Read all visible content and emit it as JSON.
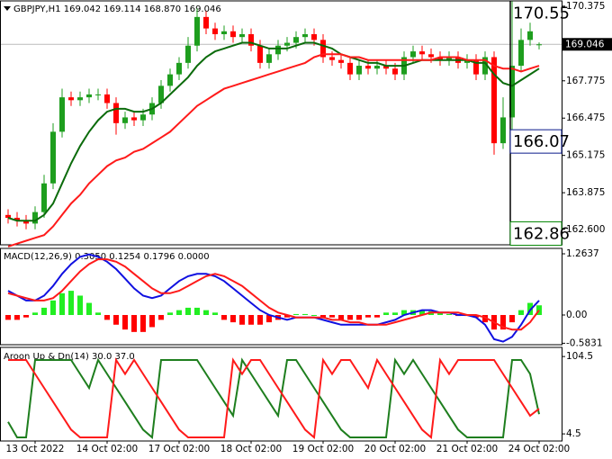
{
  "chart_data": [
    {
      "type": "candlestick",
      "title": "GBPJPY,H1  169.042 169.114 168.870 169.046",
      "open": [
        163.1,
        163.0,
        162.9,
        162.8,
        163.2,
        164.2,
        166.0,
        167.2,
        167.1,
        167.2,
        167.3,
        167.3,
        167.0,
        166.3,
        166.5,
        166.4,
        166.6,
        167.0,
        167.6,
        168.0,
        168.4,
        169.0,
        170.0,
        169.6,
        169.4,
        169.5,
        169.3,
        169.4,
        169.0,
        168.4,
        168.7,
        169.0,
        169.1,
        169.3,
        169.4,
        169.2,
        168.6,
        168.5,
        168.4,
        168.0,
        168.3,
        168.2,
        168.3,
        168.2,
        168.0,
        168.6,
        168.8,
        168.7,
        168.6,
        168.5,
        168.6,
        168.4,
        168.5,
        168.0,
        168.6,
        165.6,
        166.5,
        168.3,
        169.2,
        169.042
      ],
      "high": [
        163.3,
        163.2,
        163.1,
        163.4,
        164.5,
        166.3,
        167.5,
        167.4,
        167.4,
        167.5,
        167.5,
        167.5,
        167.2,
        166.7,
        166.7,
        166.8,
        167.2,
        167.8,
        168.2,
        168.6,
        169.3,
        170.3,
        170.2,
        169.8,
        169.7,
        169.7,
        169.6,
        169.6,
        169.2,
        168.9,
        169.2,
        169.3,
        169.5,
        169.6,
        169.6,
        169.4,
        168.8,
        168.7,
        168.6,
        168.5,
        168.5,
        168.5,
        168.5,
        168.4,
        168.8,
        169.0,
        169.0,
        168.9,
        168.8,
        168.8,
        168.8,
        168.7,
        168.7,
        168.8,
        168.8,
        167.2,
        170.55,
        169.6,
        169.8,
        169.114
      ],
      "low": [
        162.8,
        162.7,
        162.6,
        162.6,
        163.0,
        164.0,
        165.8,
        166.9,
        166.9,
        167.0,
        167.1,
        166.8,
        165.9,
        166.1,
        166.2,
        166.2,
        166.4,
        166.8,
        167.4,
        167.8,
        168.2,
        168.8,
        169.4,
        169.2,
        169.2,
        169.1,
        169.1,
        168.8,
        168.2,
        168.2,
        168.5,
        168.8,
        168.9,
        169.1,
        169.0,
        168.4,
        168.3,
        168.2,
        167.8,
        167.8,
        168.0,
        168.0,
        168.0,
        167.8,
        167.8,
        168.4,
        168.5,
        168.4,
        168.3,
        168.3,
        168.2,
        168.2,
        167.8,
        167.8,
        165.2,
        165.4,
        166.07,
        168.1,
        169.0,
        168.87
      ],
      "close": [
        163.0,
        162.9,
        162.8,
        163.2,
        164.2,
        166.0,
        167.2,
        167.1,
        167.2,
        167.3,
        167.3,
        167.0,
        166.3,
        166.5,
        166.4,
        166.6,
        167.0,
        167.6,
        168.0,
        168.4,
        169.0,
        170.0,
        169.6,
        169.4,
        169.5,
        169.3,
        169.4,
        169.0,
        168.4,
        168.7,
        169.0,
        169.1,
        169.3,
        169.4,
        169.2,
        168.6,
        168.5,
        168.4,
        168.0,
        168.3,
        168.2,
        168.3,
        168.2,
        168.0,
        168.6,
        168.8,
        168.7,
        168.6,
        168.5,
        168.6,
        168.4,
        168.5,
        168.0,
        168.6,
        165.6,
        166.5,
        168.3,
        169.2,
        169.5,
        169.046
      ],
      "up_color": "#1e9e1e",
      "down_color": "#ff0000",
      "series": [
        {
          "color": "#0b6b0b",
          "values": [
            163.0,
            162.9,
            162.9,
            162.9,
            163.1,
            163.5,
            164.2,
            164.9,
            165.5,
            166.0,
            166.4,
            166.7,
            166.8,
            166.8,
            166.7,
            166.7,
            166.8,
            167.0,
            167.3,
            167.6,
            167.9,
            168.3,
            168.6,
            168.8,
            168.9,
            169.0,
            169.1,
            169.1,
            169.0,
            168.9,
            168.9,
            168.9,
            169.0,
            169.1,
            169.1,
            169.0,
            168.9,
            168.7,
            168.6,
            168.5,
            168.4,
            168.4,
            168.3,
            168.3,
            168.3,
            168.4,
            168.5,
            168.5,
            168.5,
            168.5,
            168.5,
            168.5,
            168.4,
            168.4,
            168.0,
            167.7,
            167.6,
            167.8,
            168.0,
            168.2
          ]
        },
        {
          "color": "#ff1a1a",
          "values": [
            162.0,
            162.1,
            162.2,
            162.3,
            162.4,
            162.7,
            163.1,
            163.5,
            163.8,
            164.2,
            164.5,
            164.8,
            165.0,
            165.1,
            165.3,
            165.4,
            165.6,
            165.8,
            166.0,
            166.3,
            166.6,
            166.9,
            167.1,
            167.3,
            167.5,
            167.6,
            167.7,
            167.8,
            167.9,
            168.0,
            168.1,
            168.2,
            168.3,
            168.4,
            168.6,
            168.7,
            168.7,
            168.7,
            168.6,
            168.6,
            168.5,
            168.5,
            168.5,
            168.5,
            168.5,
            168.5,
            168.5,
            168.5,
            168.6,
            168.6,
            168.6,
            168.5,
            168.5,
            168.5,
            168.3,
            168.2,
            168.2,
            168.1,
            168.2,
            168.3
          ]
        }
      ],
      "ylim": [
        162.06,
        170.56
      ],
      "yticks": [
        170.375,
        167.775,
        166.475,
        165.175,
        163.875,
        {
          "value": 162.6,
          "label": "162.600"
        }
      ],
      "current_price": 169.046,
      "markers": [
        {
          "value": 170.55,
          "color": "#ff0000",
          "boxed": false
        },
        {
          "value": 166.07,
          "color": "#0a1a8c",
          "boxed": true
        },
        {
          "value": 162.86,
          "color": "#0a8a0a",
          "boxed": true
        }
      ]
    },
    {
      "type": "macd",
      "title": "MACD(12,26,9) 0.3050 0.1254 0.1796 0.0000",
      "histogram": {
        "up_color": "#22ee22",
        "down_color": "#ff0000",
        "values": [
          -0.1,
          -0.1,
          -0.05,
          0.05,
          0.15,
          0.3,
          0.45,
          0.5,
          0.4,
          0.25,
          0.05,
          -0.1,
          -0.2,
          -0.3,
          -0.35,
          -0.35,
          -0.25,
          -0.1,
          0.05,
          0.1,
          0.15,
          0.15,
          0.1,
          0.05,
          -0.1,
          -0.15,
          -0.2,
          -0.2,
          -0.2,
          -0.15,
          -0.1,
          -0.05,
          0.02,
          0.02,
          0.0,
          -0.05,
          -0.05,
          -0.1,
          -0.1,
          -0.1,
          -0.05,
          -0.05,
          0.05,
          0.05,
          0.1,
          0.1,
          0.1,
          0.08,
          0.05,
          0.02,
          -0.02,
          -0.02,
          -0.05,
          -0.15,
          -0.3,
          -0.3,
          -0.15,
          0.1,
          0.25,
          0.2
        ]
      },
      "series": [
        {
          "color": "#1010e0",
          "values": [
            0.5,
            0.4,
            0.3,
            0.3,
            0.4,
            0.6,
            0.85,
            1.05,
            1.2,
            1.25,
            1.2,
            1.1,
            0.95,
            0.75,
            0.55,
            0.4,
            0.35,
            0.4,
            0.55,
            0.7,
            0.8,
            0.85,
            0.85,
            0.8,
            0.7,
            0.55,
            0.4,
            0.25,
            0.1,
            0.0,
            -0.05,
            -0.1,
            -0.05,
            -0.05,
            -0.05,
            -0.1,
            -0.15,
            -0.2,
            -0.2,
            -0.2,
            -0.2,
            -0.2,
            -0.15,
            -0.1,
            0.0,
            0.05,
            0.1,
            0.1,
            0.05,
            0.05,
            0.0,
            0.0,
            -0.05,
            -0.2,
            -0.5,
            -0.55,
            -0.45,
            -0.2,
            0.1,
            0.3
          ]
        },
        {
          "color": "#ff1a1a",
          "values": [
            0.45,
            0.4,
            0.35,
            0.3,
            0.3,
            0.35,
            0.5,
            0.7,
            0.9,
            1.05,
            1.15,
            1.15,
            1.1,
            1.0,
            0.85,
            0.7,
            0.55,
            0.45,
            0.45,
            0.5,
            0.6,
            0.7,
            0.8,
            0.85,
            0.8,
            0.7,
            0.6,
            0.45,
            0.3,
            0.15,
            0.05,
            0.0,
            -0.05,
            -0.05,
            -0.05,
            -0.05,
            -0.1,
            -0.1,
            -0.15,
            -0.15,
            -0.2,
            -0.2,
            -0.2,
            -0.15,
            -0.1,
            -0.05,
            0.0,
            0.05,
            0.05,
            0.05,
            0.05,
            0.0,
            0.0,
            -0.05,
            -0.15,
            -0.25,
            -0.3,
            -0.3,
            -0.15,
            0.1
          ]
        }
      ],
      "ylim": [
        -0.613,
        1.375
      ],
      "yticks": [
        1.2637,
        {
          "value": 0,
          "label": "0.00"
        },
        -0.5831
      ]
    },
    {
      "type": "line",
      "title": "Aroon Up & Dn(14) 30.0 37.0",
      "categories": [
        null,
        null,
        null,
        "13 Oct 2022",
        null,
        null,
        null,
        null,
        null,
        null,
        null,
        "14 Oct 02:00",
        null,
        null,
        null,
        null,
        null,
        null,
        null,
        "17 Oct 02:00",
        null,
        null,
        null,
        null,
        null,
        null,
        null,
        "18 Oct 02:00",
        null,
        null,
        null,
        null,
        null,
        null,
        null,
        "19 Oct 02:00",
        null,
        null,
        null,
        null,
        null,
        null,
        null,
        "20 Oct 02:00",
        null,
        null,
        null,
        null,
        null,
        null,
        null,
        "21 Oct 02:00",
        null,
        null,
        null,
        null,
        null,
        null,
        null,
        "24 Oct 02:00"
      ],
      "series": [
        {
          "color": "#1e7e1e",
          "values": [
            20,
            0,
            0,
            100,
            100,
            100,
            100,
            100,
            82,
            64,
            100,
            82,
            64,
            46,
            28,
            10,
            0,
            100,
            100,
            100,
            100,
            100,
            82,
            64,
            46,
            28,
            100,
            82,
            64,
            46,
            28,
            100,
            100,
            82,
            64,
            46,
            28,
            10,
            0,
            0,
            0,
            0,
            0,
            100,
            82,
            100,
            82,
            64,
            46,
            28,
            10,
            0,
            0,
            0,
            0,
            0,
            100,
            100,
            82,
            30
          ]
        },
        {
          "color": "#ff1a1a",
          "values": [
            100,
            100,
            100,
            82,
            64,
            46,
            28,
            10,
            0,
            0,
            0,
            0,
            100,
            82,
            100,
            82,
            64,
            46,
            28,
            10,
            0,
            0,
            0,
            0,
            0,
            100,
            82,
            100,
            100,
            82,
            64,
            46,
            28,
            10,
            0,
            100,
            82,
            100,
            100,
            82,
            64,
            100,
            82,
            64,
            46,
            28,
            10,
            0,
            100,
            82,
            100,
            100,
            100,
            100,
            100,
            82,
            64,
            46,
            28,
            37
          ]
        }
      ],
      "ylim": [
        -4.7,
        116.3
      ],
      "yticks": [
        104.5,
        4.5
      ]
    }
  ]
}
